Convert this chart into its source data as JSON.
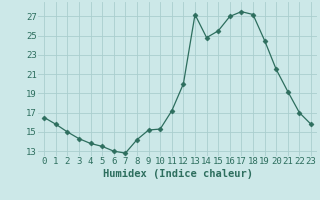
{
  "x": [
    0,
    1,
    2,
    3,
    4,
    5,
    6,
    7,
    8,
    9,
    10,
    11,
    12,
    13,
    14,
    15,
    16,
    17,
    18,
    19,
    20,
    21,
    22,
    23
  ],
  "y": [
    16.5,
    15.8,
    15.0,
    14.3,
    13.8,
    13.5,
    13.0,
    12.8,
    14.2,
    15.2,
    15.3,
    17.2,
    20.0,
    27.2,
    24.8,
    25.5,
    27.0,
    27.5,
    27.2,
    24.5,
    21.5,
    19.2,
    17.0,
    15.8
  ],
  "line_color": "#2d6e5e",
  "marker": "D",
  "marker_size": 2.5,
  "bg_color": "#cce8e8",
  "grid_color": "#aacece",
  "xlabel": "Humidex (Indice chaleur)",
  "ylim": [
    12.5,
    28.5
  ],
  "xlim": [
    -0.5,
    23.5
  ],
  "yticks": [
    13,
    15,
    17,
    19,
    21,
    23,
    25,
    27
  ],
  "tick_color": "#2d6e5e",
  "label_fontsize": 7.5,
  "tick_fontsize": 6.5
}
